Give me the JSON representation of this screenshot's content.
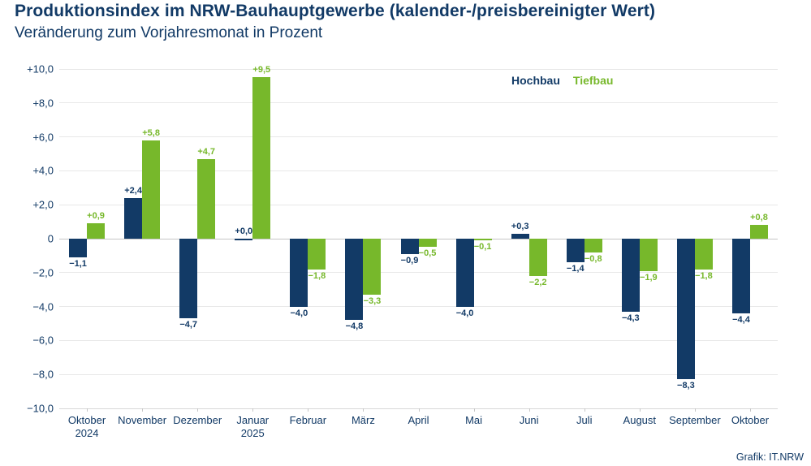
{
  "header": {
    "title": "Produktionsindex im NRW-Bauhauptgewerbe (kalender-/preisbereinigter Wert)",
    "subtitle": "Veränderung zum Vorjahresmonat in Prozent"
  },
  "legend": {
    "hochbau": "Hochbau",
    "tiefbau": "Tiefbau"
  },
  "footer": {
    "credit": "Grafik: IT.NRW"
  },
  "colors": {
    "hochbau": "#123a66",
    "tiefbau": "#77b82b",
    "grid": "#e8e8e8",
    "zero_line": "#c6c6c6",
    "text": "#123a66"
  },
  "chart_data": {
    "type": "bar",
    "title": "Produktionsindex im NRW-Bauhauptgewerbe (kalender-/preisbereinigter Wert)",
    "subtitle": "Veränderung zum Vorjahresmonat in Prozent",
    "xlabel": "",
    "ylabel": "Veränderung zum Vorjahresmonat in Prozent",
    "ylim": [
      -10,
      10
    ],
    "grid": true,
    "legend_position": "top-right",
    "categories": [
      "Oktober\n2024",
      "November",
      "Dezember",
      "Januar\n2025",
      "Februar",
      "März",
      "April",
      "Mai",
      "Juni",
      "Juli",
      "August",
      "September",
      "Oktober"
    ],
    "yticks": [
      {
        "value": 10,
        "label": "+10,0"
      },
      {
        "value": 8,
        "label": "+8,0"
      },
      {
        "value": 6,
        "label": "+6,0"
      },
      {
        "value": 4,
        "label": "+4,0"
      },
      {
        "value": 2,
        "label": "+2,0"
      },
      {
        "value": 0,
        "label": "0"
      },
      {
        "value": -2,
        "label": "−2,0"
      },
      {
        "value": -4,
        "label": "−4,0"
      },
      {
        "value": -6,
        "label": "−6,0"
      },
      {
        "value": -8,
        "label": "−8,0"
      },
      {
        "value": -10,
        "label": "−10,0"
      }
    ],
    "series": [
      {
        "name": "Hochbau",
        "color": "#123a66",
        "values": [
          -1.1,
          2.4,
          -4.7,
          0.0,
          -4.0,
          -4.8,
          -0.9,
          -4.0,
          0.3,
          -1.4,
          -4.3,
          -8.3,
          -4.4
        ],
        "labels": [
          "−1,1",
          "+2,4",
          "−4,7",
          "+0,0",
          "−4,0",
          "−4,8",
          "−0,9",
          "−4,0",
          "+0,3",
          "−1,4",
          "−4,3",
          "−8,3",
          "−4,4"
        ]
      },
      {
        "name": "Tiefbau",
        "color": "#77b82b",
        "values": [
          0.9,
          5.8,
          4.7,
          9.5,
          -1.8,
          -3.3,
          -0.5,
          -0.1,
          -2.2,
          -0.8,
          -1.9,
          -1.8,
          0.8
        ],
        "labels": [
          "+0,9",
          "+5,8",
          "+4,7",
          "+9,5",
          "−1,8",
          "−3,3",
          "−0,5",
          "−0,1",
          "−2,2",
          "−0,8",
          "−1,9",
          "−1,8",
          "+0,8"
        ]
      }
    ]
  }
}
